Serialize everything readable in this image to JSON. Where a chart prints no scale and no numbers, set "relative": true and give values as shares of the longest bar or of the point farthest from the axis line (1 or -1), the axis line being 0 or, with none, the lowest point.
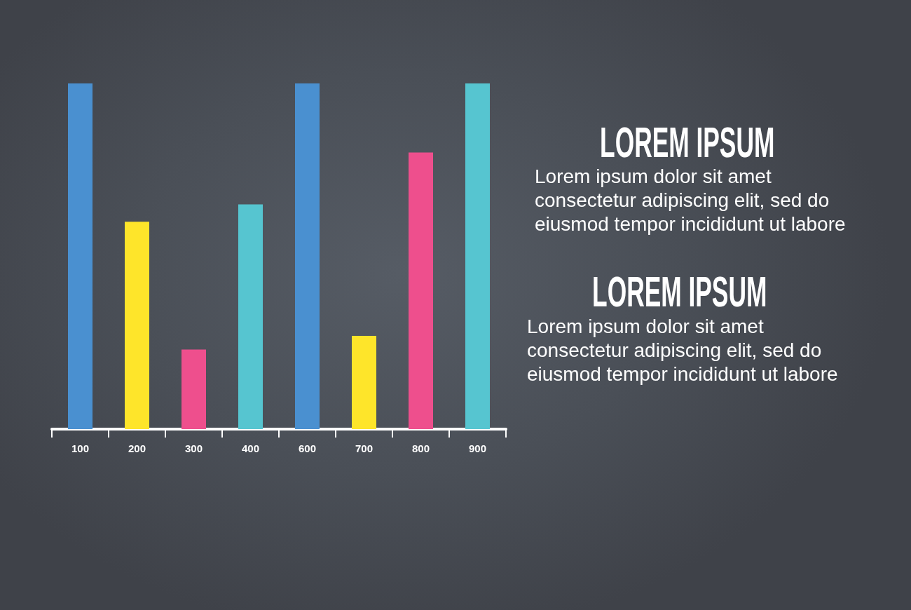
{
  "chart_data": {
    "type": "bar",
    "categories": [
      "100",
      "200",
      "300",
      "400",
      "600",
      "700",
      "800",
      "900"
    ],
    "values": [
      1,
      0.6,
      0.23,
      0.65,
      1,
      0.27,
      0.8,
      1
    ],
    "colors": [
      "#4a90d0",
      "#fee52a",
      "#ee4f8d",
      "#56c5d0",
      "#4a90d0",
      "#fee52a",
      "#ee4f8d",
      "#56c5d0"
    ],
    "relative": true,
    "annotations": [
      "LOREM IPSUM",
      "Lorem ipsum dolor sit amet consectetur adipiscing elit, sed do eiusmod tempor incididunt ut labore",
      "LOREM IPSUM",
      "Lorem ipsum dolor sit amet consectetur adipiscing elit, sed do eiusmod tempor incididunt ut labore"
    ]
  }
}
